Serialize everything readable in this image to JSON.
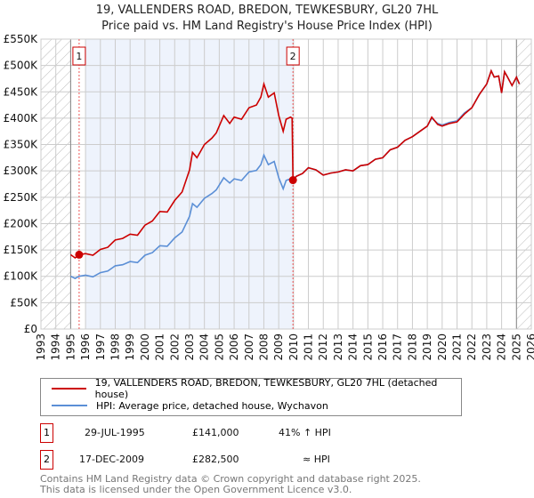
{
  "chart_data": {
    "type": "line",
    "title": "19, VALLENDERS ROAD, BREDON, TEWKESBURY, GL20 7HL",
    "subtitle": "Price paid vs. HM Land Registry's House Price Index (HPI)",
    "xlim": [
      1993,
      2026
    ],
    "ylim": [
      0,
      550000
    ],
    "yticks": [
      {
        "v": 0,
        "label": "£0"
      },
      {
        "v": 50000,
        "label": "£50K"
      },
      {
        "v": 100000,
        "label": "£100K"
      },
      {
        "v": 150000,
        "label": "£150K"
      },
      {
        "v": 200000,
        "label": "£200K"
      },
      {
        "v": 250000,
        "label": "£250K"
      },
      {
        "v": 300000,
        "label": "£300K"
      },
      {
        "v": 350000,
        "label": "£350K"
      },
      {
        "v": 400000,
        "label": "£400K"
      },
      {
        "v": 450000,
        "label": "£450K"
      },
      {
        "v": 500000,
        "label": "£500K"
      },
      {
        "v": 550000,
        "label": "£550K"
      }
    ],
    "xticks": [
      "1993",
      "1994",
      "1995",
      "1996",
      "1997",
      "1998",
      "1999",
      "2000",
      "2001",
      "2002",
      "2003",
      "2004",
      "2005",
      "2006",
      "2007",
      "2008",
      "2009",
      "2010",
      "2011",
      "2012",
      "2013",
      "2014",
      "2015",
      "2016",
      "2017",
      "2018",
      "2019",
      "2020",
      "2021",
      "2022",
      "2023",
      "2024",
      "2025",
      "2026"
    ],
    "grid": true,
    "series": [
      {
        "name": "19, VALLENDERS ROAD, BREDON, TEWKESBURY, GL20 7HL (detached house)",
        "color": "#cc0000",
        "x": [
          1995.0,
          1995.3,
          1995.57,
          1996.0,
          1996.5,
          1997.0,
          1997.5,
          1998.0,
          1998.5,
          1999.0,
          1999.5,
          2000.0,
          2000.5,
          2001.0,
          2001.5,
          2002.0,
          2002.5,
          2003.0,
          2003.2,
          2003.5,
          2004.0,
          2004.5,
          2004.8,
          2005.3,
          2005.7,
          2006.0,
          2006.5,
          2007.0,
          2007.5,
          2007.8,
          2008.0,
          2008.3,
          2008.7,
          2009.0,
          2009.3,
          2009.5,
          2009.8,
          2009.9,
          2009.96,
          2010.2,
          2010.6,
          2011.0,
          2011.5,
          2012.0,
          2012.5,
          2013.0,
          2013.5,
          2014.0,
          2014.5,
          2015.0,
          2015.5,
          2016.0,
          2016.5,
          2017.0,
          2017.5,
          2018.0,
          2018.5,
          2019.0,
          2019.3,
          2019.7,
          2020.0,
          2020.5,
          2021.0,
          2021.5,
          2022.0,
          2022.5,
          2023.0,
          2023.3,
          2023.5,
          2023.8,
          2024.0,
          2024.2,
          2024.4,
          2024.7,
          2025.0,
          2025.2
        ],
        "y": [
          141000,
          135000,
          141000,
          143000,
          140000,
          151000,
          155000,
          169000,
          172000,
          180000,
          178000,
          197000,
          205000,
          223000,
          222000,
          244000,
          260000,
          302000,
          335000,
          325000,
          350000,
          362000,
          372000,
          405000,
          390000,
          402000,
          398000,
          420000,
          425000,
          440000,
          465000,
          440000,
          448000,
          405000,
          375000,
          398000,
          402000,
          400000,
          282500,
          290000,
          295000,
          306000,
          302000,
          292000,
          296000,
          298000,
          302000,
          300000,
          310000,
          312000,
          322000,
          325000,
          340000,
          345000,
          358000,
          365000,
          375000,
          385000,
          402000,
          388000,
          385000,
          390000,
          393000,
          408000,
          420000,
          445000,
          465000,
          490000,
          478000,
          480000,
          448000,
          488000,
          478000,
          462000,
          478000,
          465000
        ]
      },
      {
        "name": "HPI: Average price, detached house, Wychavon",
        "color": "#5b8fd6",
        "x": [
          1995.0,
          1995.3,
          1995.57,
          1996.0,
          1996.5,
          1997.0,
          1997.5,
          1998.0,
          1998.5,
          1999.0,
          1999.5,
          2000.0,
          2000.5,
          2001.0,
          2001.5,
          2002.0,
          2002.5,
          2003.0,
          2003.2,
          2003.5,
          2004.0,
          2004.5,
          2004.8,
          2005.3,
          2005.7,
          2006.0,
          2006.5,
          2007.0,
          2007.5,
          2007.8,
          2008.0,
          2008.3,
          2008.7,
          2009.0,
          2009.3,
          2009.5,
          2009.8,
          2009.96,
          2010.2,
          2010.6,
          2011.0,
          2011.5,
          2012.0,
          2012.5,
          2013.0,
          2013.5,
          2014.0,
          2014.5,
          2015.0,
          2015.5,
          2016.0,
          2016.5,
          2017.0,
          2017.5,
          2018.0,
          2018.5,
          2019.0,
          2019.3,
          2019.7,
          2020.0,
          2020.5,
          2021.0,
          2021.5,
          2022.0,
          2022.5,
          2023.0,
          2023.3,
          2023.5,
          2023.8,
          2024.0,
          2024.2,
          2024.4,
          2024.7,
          2025.0,
          2025.2
        ],
        "y": [
          100000,
          96000,
          100000,
          102000,
          99000,
          107000,
          110000,
          120000,
          122000,
          128000,
          126000,
          140000,
          145000,
          158000,
          157000,
          173000,
          184000,
          214000,
          238000,
          231000,
          248000,
          257000,
          264000,
          287000,
          277000,
          285000,
          282000,
          298000,
          301000,
          312000,
          330000,
          312000,
          318000,
          287000,
          266000,
          282000,
          285000,
          285000,
          290000,
          295000,
          306000,
          302000,
          292000,
          296000,
          298000,
          302000,
          300000,
          310000,
          312000,
          322000,
          325000,
          340000,
          345000,
          358000,
          365000,
          375000,
          385000,
          400000,
          390000,
          387000,
          392000,
          395000,
          410000,
          420000,
          445000,
          465000,
          490000,
          478000,
          480000,
          448000,
          488000,
          478000,
          462000,
          478000,
          465000
        ]
      }
    ],
    "sales": [
      {
        "id": "1",
        "year": 1995.57,
        "price": 141000
      },
      {
        "id": "2",
        "year": 2009.96,
        "price": 282500
      }
    ],
    "shaded_range": [
      1996.0,
      2009.96
    ],
    "hatched_before": 1995.0,
    "hatched_after": 2025.0
  },
  "legend": {
    "property": "19, VALLENDERS ROAD, BREDON, TEWKESBURY, GL20 7HL (detached house)",
    "hpi": "HPI: Average price, detached house, Wychavon",
    "property_color": "#cc0000",
    "hpi_color": "#5b8fd6"
  },
  "transactions": [
    {
      "id": "1",
      "date": "29-JUL-1995",
      "price": "£141,000",
      "hpi": "41% ↑ HPI"
    },
    {
      "id": "2",
      "date": "17-DEC-2009",
      "price": "£282,500",
      "hpi": "≈ HPI"
    }
  ],
  "footer": {
    "line1": "Contains HM Land Registry data © Crown copyright and database right 2025.",
    "line2": "This data is licensed under the Open Government Licence v3.0."
  }
}
